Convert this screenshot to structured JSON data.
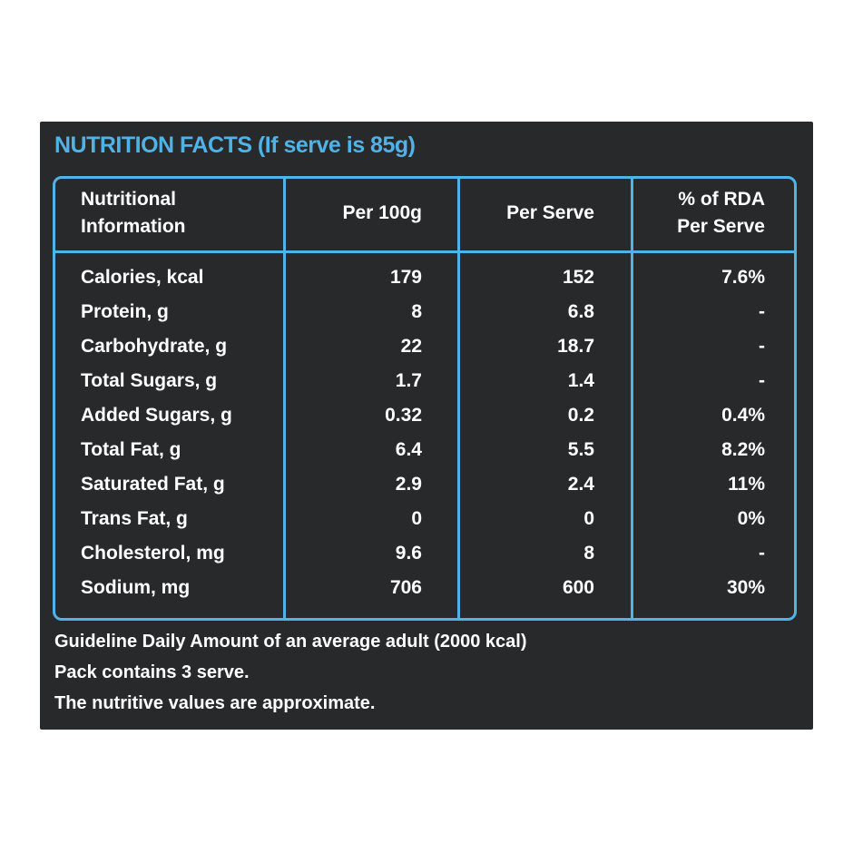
{
  "title": "NUTRITION FACTS (If serve is 85g)",
  "colors": {
    "background": "#28292b",
    "accent": "#4fb3e8",
    "text": "#ffffff"
  },
  "table": {
    "headers": {
      "nutrient_line1": "Nutritional",
      "nutrient_line2": "Information",
      "per_100g": "Per 100g",
      "per_serve": "Per Serve",
      "rda_line1": "% of RDA",
      "rda_line2": "Per Serve"
    },
    "rows": [
      {
        "name": "Calories, kcal",
        "per_100g": "179",
        "per_serve": "152",
        "rda": "7.6%"
      },
      {
        "name": "Protein, g",
        "per_100g": "8",
        "per_serve": "6.8",
        "rda": "-"
      },
      {
        "name": "Carbohydrate, g",
        "per_100g": "22",
        "per_serve": "18.7",
        "rda": "-"
      },
      {
        "name": "Total Sugars, g",
        "per_100g": "1.7",
        "per_serve": "1.4",
        "rda": "-"
      },
      {
        "name": "Added Sugars, g",
        "per_100g": "0.32",
        "per_serve": "0.2",
        "rda": "0.4%"
      },
      {
        "name": "Total Fat, g",
        "per_100g": "6.4",
        "per_serve": "5.5",
        "rda": "8.2%"
      },
      {
        "name": "Saturated Fat, g",
        "per_100g": "2.9",
        "per_serve": "2.4",
        "rda": "11%"
      },
      {
        "name": "Trans Fat, g",
        "per_100g": "0",
        "per_serve": "0",
        "rda": "0%"
      },
      {
        "name": "Cholesterol, mg",
        "per_100g": "9.6",
        "per_serve": "8",
        "rda": "-"
      },
      {
        "name": "Sodium, mg",
        "per_100g": "706",
        "per_serve": "600",
        "rda": "30%"
      }
    ]
  },
  "notes": [
    "Guideline Daily Amount of an average adult (2000 kcal)",
    "Pack contains 3 serve.",
    "The nutritive values are approximate."
  ]
}
